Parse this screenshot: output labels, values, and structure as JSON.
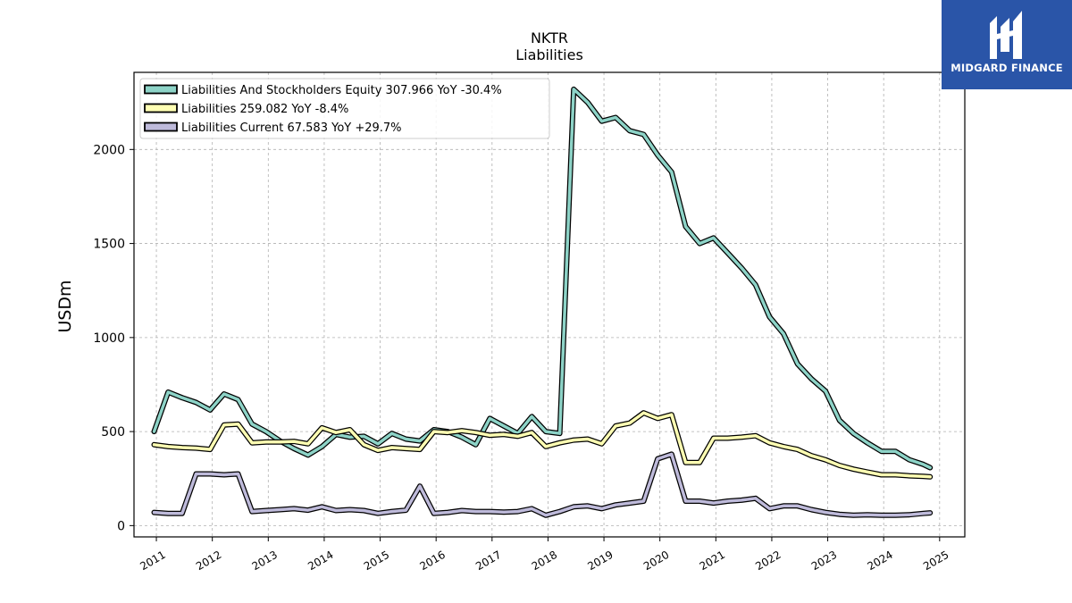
{
  "chart_data": {
    "type": "line",
    "title": "NKTR",
    "subtitle": "Liabilities",
    "ylabel": "USDm",
    "xlabel": "",
    "xlim": [
      2010.6,
      2025.45
    ],
    "ylim": [
      -60,
      2410
    ],
    "yticks": [
      0,
      500,
      1000,
      1500,
      2000
    ],
    "xticks": [
      "2011",
      "2012",
      "2013",
      "2014",
      "2015",
      "2016",
      "2017",
      "2018",
      "2019",
      "2020",
      "2021",
      "2022",
      "2023",
      "2024",
      "2025"
    ],
    "grid": true,
    "legend_position": "top-left",
    "x": [
      2010.96,
      2011.21,
      2011.46,
      2011.71,
      2011.96,
      2012.21,
      2012.46,
      2012.71,
      2012.96,
      2013.21,
      2013.46,
      2013.71,
      2013.96,
      2014.21,
      2014.46,
      2014.71,
      2014.96,
      2015.21,
      2015.46,
      2015.71,
      2015.96,
      2016.21,
      2016.46,
      2016.71,
      2016.96,
      2017.21,
      2017.46,
      2017.71,
      2017.96,
      2018.21,
      2018.46,
      2018.71,
      2018.96,
      2019.21,
      2019.46,
      2019.71,
      2019.96,
      2020.21,
      2020.46,
      2020.71,
      2020.96,
      2021.21,
      2021.46,
      2021.71,
      2021.96,
      2022.21,
      2022.46,
      2022.71,
      2022.96,
      2023.21,
      2023.46,
      2023.71,
      2023.96,
      2024.21,
      2024.46,
      2024.71,
      2024.83
    ],
    "series": [
      {
        "name": "Liabilities And Stockholders Equity",
        "legend": "Liabilities And Stockholders Equity  307.966 YoY -30.4%",
        "color": "#8dd3c7",
        "values": [
          500,
          710,
          680,
          655,
          615,
          700,
          670,
          540,
          500,
          450,
          410,
          375,
          420,
          485,
          470,
          475,
          435,
          490,
          460,
          450,
          510,
          500,
          470,
          430,
          570,
          530,
          490,
          580,
          500,
          490,
          2320,
          2250,
          2150,
          2170,
          2100,
          2080,
          1970,
          1880,
          1590,
          1500,
          1530,
          1450,
          1370,
          1280,
          1110,
          1020,
          860,
          780,
          715,
          560,
          490,
          440,
          395,
          395,
          350,
          325,
          308
        ]
      },
      {
        "name": "Liabilities",
        "legend": "Liabilities  259.082 YoY -8.4%",
        "color": "#ffffb3",
        "values": [
          430,
          420,
          415,
          412,
          405,
          535,
          540,
          440,
          445,
          445,
          448,
          435,
          520,
          495,
          510,
          430,
          400,
          415,
          410,
          405,
          500,
          495,
          505,
          495,
          480,
          485,
          475,
          495,
          420,
          440,
          455,
          460,
          435,
          530,
          545,
          600,
          570,
          590,
          335,
          335,
          465,
          465,
          470,
          478,
          440,
          420,
          405,
          372,
          350,
          320,
          300,
          285,
          270,
          270,
          265,
          262,
          259
        ]
      },
      {
        "name": "Liabilities Current",
        "legend": "Liabilities Current  67.583 YoY +29.7%",
        "color": "#bebada",
        "values": [
          70,
          65,
          65,
          275,
          275,
          270,
          275,
          75,
          80,
          85,
          90,
          82,
          100,
          80,
          85,
          80,
          65,
          75,
          82,
          210,
          65,
          70,
          80,
          75,
          75,
          72,
          75,
          90,
          55,
          75,
          100,
          105,
          90,
          110,
          120,
          130,
          355,
          380,
          130,
          130,
          120,
          130,
          135,
          145,
          90,
          105,
          105,
          85,
          70,
          60,
          55,
          58,
          55,
          55,
          58,
          65,
          68
        ]
      }
    ]
  },
  "watermark": {
    "brand": "MIDGARD FINANCE",
    "background": "#2a55a8"
  }
}
